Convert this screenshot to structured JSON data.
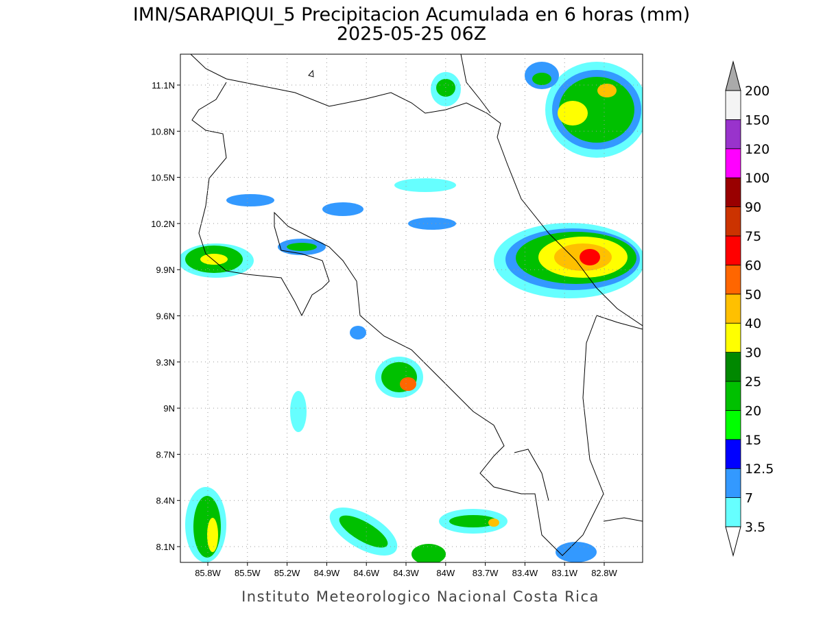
{
  "title": "IMN/SARAPIQUI_5 Precipitacion Acumulada en 6 horas (mm)",
  "subtitle": "2025-05-25 06Z",
  "map": {
    "lat_labels": [
      "11.1N",
      "10.8N",
      "10.5N",
      "10.2N",
      "9.9N",
      "9.6N",
      "9.3N",
      "9N",
      "8.7N",
      "8.4N",
      "8.1N"
    ],
    "lon_labels": [
      "85.8W",
      "85.5W",
      "85.2W",
      "84.9W",
      "84.6W",
      "84.3W",
      "84W",
      "83.7W",
      "83.4W",
      "83.1W",
      "82.8W"
    ]
  },
  "colorbar": {
    "labels": [
      "3.5",
      "7",
      "12.5",
      "15",
      "20",
      "25",
      "30",
      "40",
      "50",
      "60",
      "75",
      "90",
      "100",
      "120",
      "150",
      "200"
    ],
    "colors": [
      "#66ffff",
      "#3399ff",
      "#0000ff",
      "#00ff00",
      "#00c000",
      "#008800",
      "#ffff00",
      "#ffc000",
      "#ff6600",
      "#ff0000",
      "#cc3300",
      "#990000",
      "#ff00ff",
      "#9933cc",
      "#f4f4f4"
    ],
    "under_color": "#ffffff",
    "over_color": "#aaaaaa"
  },
  "footer": "Instituto Meteorologico Nacional Costa Rica"
}
